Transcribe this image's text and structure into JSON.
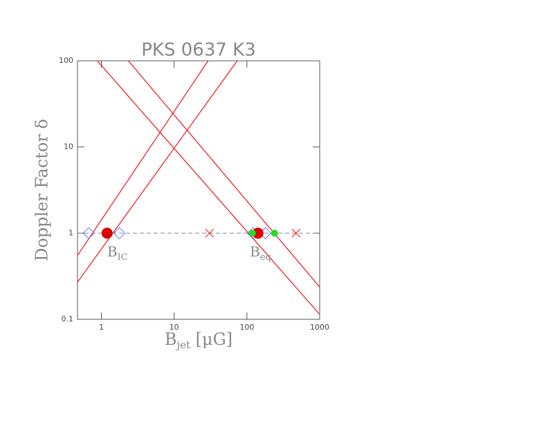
{
  "chart_data": {
    "type": "line",
    "title": "PKS 0637 K3",
    "xlabel": {
      "text": "B",
      "sub": "jet",
      "rest": " [μG]"
    },
    "ylabel": "Doppler Factor δ",
    "xlog": true,
    "ylog": true,
    "xlim": [
      0.47,
      1000
    ],
    "ylim": [
      0.1,
      100
    ],
    "xticks": [
      1,
      10,
      100,
      1000
    ],
    "yticks": [
      0.1,
      1,
      10,
      100
    ],
    "annotations": [
      {
        "text": "B",
        "sub": "IC",
        "x": 1.2,
        "y": 0.6
      },
      {
        "text": "B",
        "sub": "eq",
        "x": 110,
        "y": 0.6
      }
    ],
    "series": [
      {
        "color": "#ee1111",
        "x": [
          0.47,
          29.3
        ],
        "values": [
          0.55,
          100
        ]
      },
      {
        "color": "#ee1111",
        "x": [
          0.47,
          73.6
        ],
        "values": [
          0.27,
          100
        ]
      },
      {
        "color": "#ee1111",
        "x": [
          0.88,
          1000
        ],
        "values": [
          100,
          0.114
        ]
      },
      {
        "color": "#ee1111",
        "x": [
          2.35,
          1000
        ],
        "values": [
          100,
          0.237
        ]
      },
      {
        "color": "#8899aa",
        "dashed": true,
        "x": [
          0.47,
          1000
        ],
        "values": [
          1,
          1
        ]
      }
    ],
    "points": [
      {
        "marker": "diamond",
        "color": "#6677ee",
        "x": [
          0.67,
          1.77,
          121,
          180
        ],
        "values": [
          1,
          1,
          1,
          1
        ]
      },
      {
        "marker": "circle",
        "color": "#dd0000",
        "x": [
          1.2,
          142
        ],
        "values": [
          1,
          1
        ]
      },
      {
        "marker": "dot",
        "color": "#22dd22",
        "x": [
          119,
          240
        ],
        "values": [
          1,
          1
        ]
      },
      {
        "marker": "cross",
        "color": "#ee3333",
        "x": [
          30.6,
          474
        ],
        "values": [
          1,
          1
        ]
      }
    ]
  }
}
